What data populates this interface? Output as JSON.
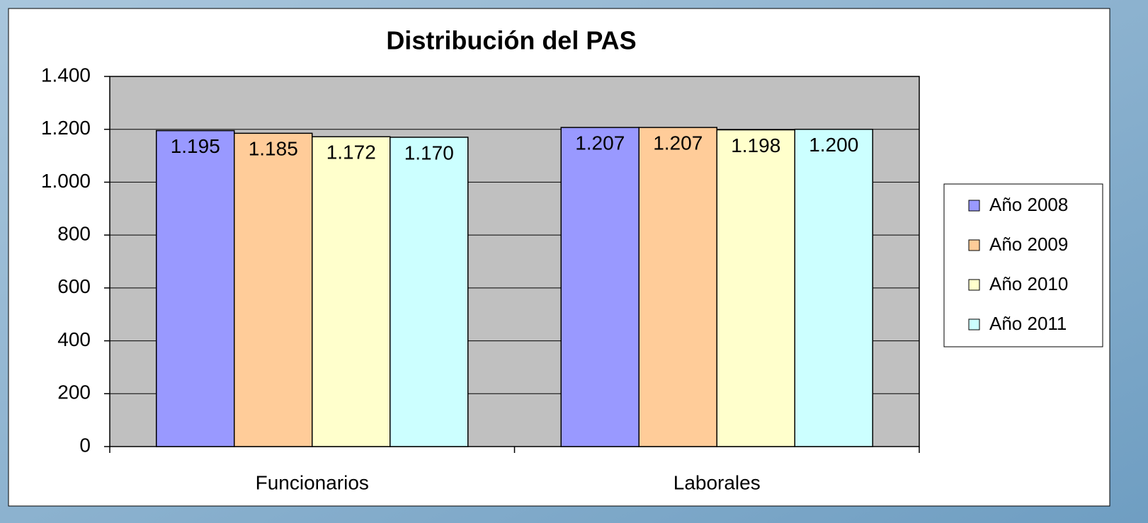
{
  "chart_data": {
    "type": "bar",
    "title": "Distribución del PAS",
    "categories": [
      "Funcionarios",
      "Laborales"
    ],
    "series": [
      {
        "name": "Año 2008",
        "color": "#9999ff",
        "values": [
          1195,
          1207
        ],
        "value_labels": [
          "1.195",
          "1.207"
        ]
      },
      {
        "name": "Año 2009",
        "color": "#ffcc99",
        "values": [
          1185,
          1207
        ],
        "value_labels": [
          "1.185",
          "1.207"
        ]
      },
      {
        "name": "Año 2010",
        "color": "#ffffcc",
        "values": [
          1172,
          1198
        ],
        "value_labels": [
          "1.172",
          "1.198"
        ]
      },
      {
        "name": "Año 2011",
        "color": "#ccffff",
        "values": [
          1170,
          1200
        ],
        "value_labels": [
          "1.170",
          "1.200"
        ]
      }
    ],
    "ylim": [
      0,
      1400
    ],
    "yticks": [
      0,
      200,
      400,
      600,
      800,
      {
        "value": 1000,
        "label": "1.000"
      },
      {
        "value": 1200,
        "label": "1.200"
      },
      {
        "value": 1400,
        "label": "1.400"
      }
    ],
    "grid": true,
    "legend": "right"
  }
}
